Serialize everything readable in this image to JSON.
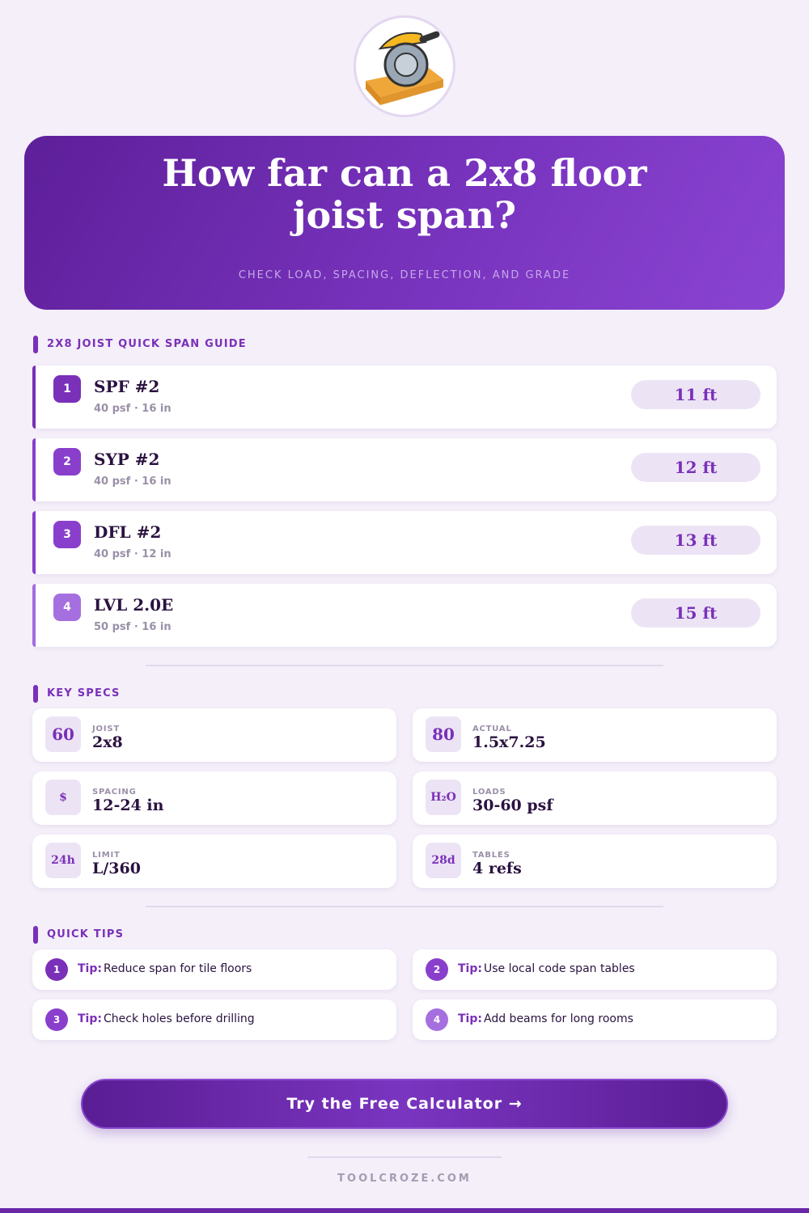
{
  "header": {
    "title": "How far can a 2x8 floor joist span?",
    "subtitle": "CHECK LOAD, SPACING, DEFLECTION, AND GRADE"
  },
  "span_guide": {
    "heading": "2X8 JOIST QUICK SPAN GUIDE",
    "rows": [
      {
        "number": "1",
        "grade": "SPF #2",
        "details": "40 psf · 16 in",
        "span": "11 ft"
      },
      {
        "number": "2",
        "grade": "SYP #2",
        "details": "40 psf · 16 in",
        "span": "12 ft"
      },
      {
        "number": "3",
        "grade": "DFL #2",
        "details": "40 psf · 12 in",
        "span": "13 ft"
      },
      {
        "number": "4",
        "grade": "LVL 2.0E",
        "details": "50 psf · 16 in",
        "span": "15 ft"
      }
    ]
  },
  "key_specs": {
    "heading": "KEY SPECS",
    "items": [
      {
        "icon": "60",
        "label": "JOIST",
        "value": "2x8"
      },
      {
        "icon": "80",
        "label": "ACTUAL",
        "value": "1.5x7.25"
      },
      {
        "icon": "$",
        "label": "SPACING",
        "value": "12-24 in"
      },
      {
        "icon": "H₂O",
        "label": "LOADS",
        "value": "30-60 psf"
      },
      {
        "icon": "24h",
        "label": "LIMIT",
        "value": "L/360"
      },
      {
        "icon": "28d",
        "label": "TABLES",
        "value": "4 refs"
      }
    ]
  },
  "tips": {
    "heading": "QUICK TIPS",
    "items": [
      {
        "number": "1",
        "prefix": "Tip:",
        "text": "Reduce span for tile floors"
      },
      {
        "number": "2",
        "prefix": "Tip:",
        "text": "Use local code span tables"
      },
      {
        "number": "3",
        "prefix": "Tip:",
        "text": "Check holes before drilling"
      },
      {
        "number": "4",
        "prefix": "Tip:",
        "text": "Add beams for long rooms"
      }
    ]
  },
  "cta": {
    "label": "Try the Free Calculator →"
  },
  "footer": {
    "site": "TOOLCROZE.COM"
  }
}
